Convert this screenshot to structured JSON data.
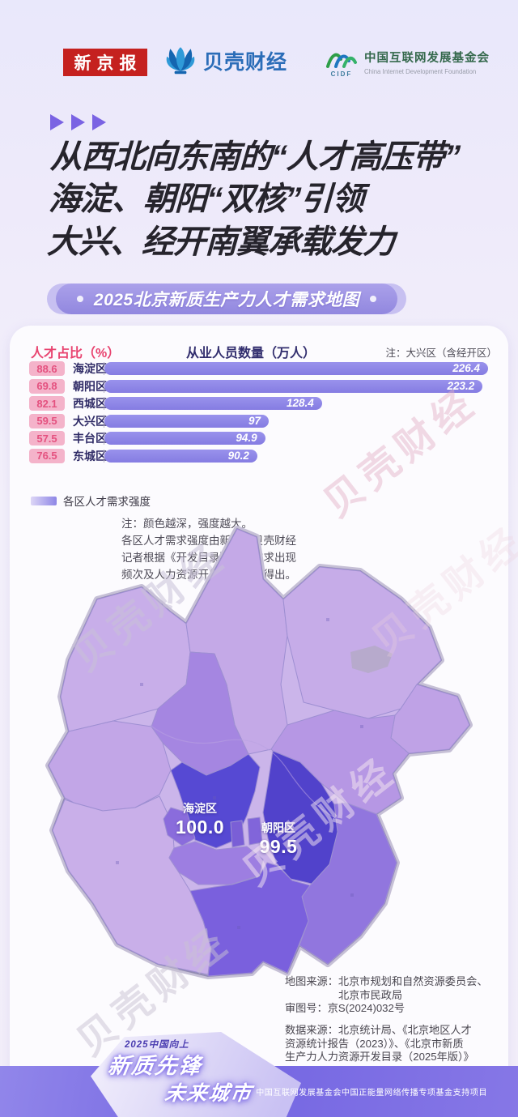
{
  "page": {
    "watermark": "贝壳财经"
  },
  "header": {
    "xjb": "新京报",
    "bk_label": "贝壳财经",
    "cidf_zh": "中国互联网发展基金会",
    "cidf_en": "China Internet Development Foundation",
    "cidf_abbr": "CIDF"
  },
  "title": {
    "lines": [
      "从西北向东南的“人才高压带”",
      "海淀、朝阳“双核”引领",
      "大兴、经开南翼承载发力"
    ]
  },
  "banner": {
    "text": "2025北京新质生产力人才需求地图"
  },
  "chart_data": {
    "type": "bar",
    "title": "从业人员数量（万人）",
    "left_header": "人才占比（%）",
    "note": "注：大兴区（含经开区）",
    "categories": [
      "海淀区",
      "朝阳区",
      "西城区",
      "大兴区",
      "丰台区",
      "东城区"
    ],
    "series": [
      {
        "name": "人才占比（%）",
        "values": [
          88.6,
          69.8,
          82.1,
          59.5,
          57.5,
          76.5
        ]
      },
      {
        "name": "从业人员数量（万人）",
        "values": [
          226.4,
          223.2,
          128.4,
          97,
          94.9,
          90.2
        ]
      }
    ],
    "xlim": [
      0,
      230
    ],
    "grid": false,
    "legend_position": "none",
    "max": 226.4,
    "rows": [
      {
        "district": "海淀区",
        "percent": "88.6",
        "employees": "226.4",
        "value": 226.4
      },
      {
        "district": "朝阳区",
        "percent": "69.8",
        "employees": "223.2",
        "value": 223.2
      },
      {
        "district": "西城区",
        "percent": "82.1",
        "employees": "128.4",
        "value": 128.4
      },
      {
        "district": "大兴区",
        "percent": "59.5",
        "employees": "97",
        "value": 97
      },
      {
        "district": "丰台区",
        "percent": "57.5",
        "employees": "94.9",
        "value": 94.9
      },
      {
        "district": "东城区",
        "percent": "76.5",
        "employees": "90.2",
        "value": 90.2
      }
    ]
  },
  "legend": {
    "label": "各区人才需求强度",
    "note_lines": [
      "注：颜色越深，强度越大。",
      "各区人才需求强度由新京报贝壳财经",
      "记者根据《开发目录》各区需求出现",
      "频次及人力资源开发评级计算得出。"
    ]
  },
  "map": {
    "type": "choropleth",
    "labels": [
      {
        "district": "海淀区",
        "value": "100.0"
      },
      {
        "district": "朝阳区",
        "value": "99.5"
      }
    ],
    "source_lines": [
      "地图来源：北京市规划和自然资源委员会、",
      "北京市民政局",
      "审图号：京S(2024)032号"
    ],
    "data_source_lines": [
      "数据来源：北京统计局、《北京地区人才",
      "资源统计报告（2023）》、《北京市新质",
      "生产力人力资源开发目录（2025年版）》"
    ]
  },
  "footer": {
    "tagline": "2025中国向上",
    "brand_line1": "新质先锋",
    "brand_line2": "未来城市",
    "support": "中国互联网发展基金会中国正能量网络传播专项基金支持项目"
  },
  "colors": {
    "accent_pink": "#e8436f",
    "badge_bg": "#f4b3ca",
    "bar": "#8d86e8",
    "banner_purple": "#9c92e4",
    "navy_text": "#2f2b66",
    "map_deep": "#5546cf",
    "map_light": "#c8aee9",
    "footer_purple": "#7a6ae4",
    "xjb_red": "#c5211f",
    "bk_blue": "#2b6db8"
  }
}
